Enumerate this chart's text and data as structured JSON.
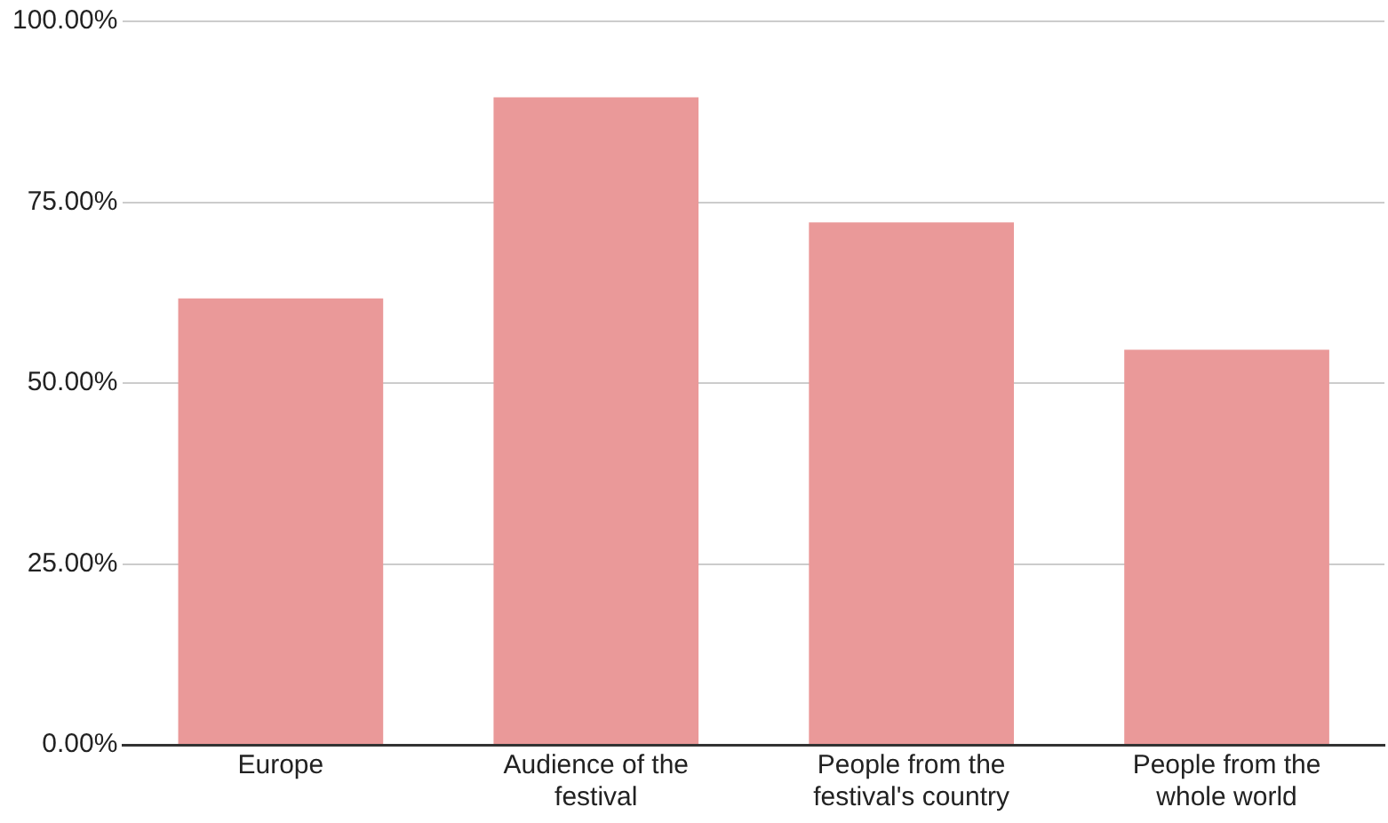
{
  "chart_data": {
    "type": "bar",
    "categories": [
      "Europe",
      "Audience of the festival",
      "People from the festival's country",
      "People from the whole world"
    ],
    "values": [
      61.7,
      89.5,
      72.2,
      54.6
    ],
    "color": "#ea9999",
    "ylim": [
      0,
      100
    ],
    "yticks": [
      {
        "value": 0,
        "label": "0.00%"
      },
      {
        "value": 25,
        "label": "25.00%"
      },
      {
        "value": 50,
        "label": "50.00%"
      },
      {
        "value": 75,
        "label": "75.00%"
      },
      {
        "value": 100,
        "label": "100.00%"
      }
    ],
    "grid": "y",
    "legend": false
  }
}
